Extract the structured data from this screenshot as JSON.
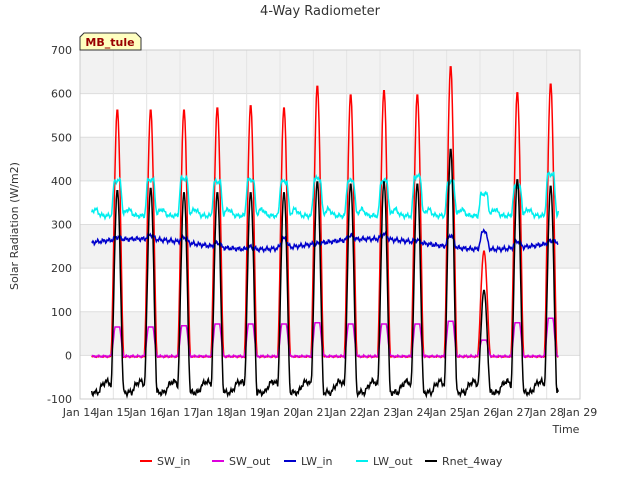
{
  "chart_data": {
    "type": "line",
    "title": "4-Way Radiometer",
    "xlabel": "Time",
    "ylabel": "Solar Radiation (W/m2)",
    "annotation": "MB_tule",
    "grid": true,
    "legend_position": "bottom",
    "xlim": [
      14,
      29
    ],
    "ylim": [
      -100,
      700
    ],
    "x_ticks": [
      14,
      15,
      16,
      17,
      18,
      19,
      20,
      21,
      22,
      23,
      24,
      25,
      26,
      27,
      28,
      29
    ],
    "x_tick_labels": [
      "Jan 14",
      "Jan 15",
      "Jan 16",
      "Jan 17",
      "Jan 18",
      "Jan 19",
      "Jan 20",
      "Jan 21",
      "Jan 22",
      "Jan 23",
      "Jan 24",
      "Jan 25",
      "Jan 26",
      "Jan 27",
      "Jan 28",
      "Jan 29"
    ],
    "y_ticks": [
      -100,
      0,
      100,
      200,
      300,
      400,
      500,
      600,
      700
    ],
    "daily_peaks": {
      "days": [
        15,
        16,
        17,
        18,
        19,
        20,
        21,
        22,
        23,
        24,
        25,
        26,
        27,
        28
      ],
      "SW_in": [
        565,
        565,
        565,
        570,
        575,
        570,
        620,
        600,
        610,
        600,
        665,
        240,
        605,
        625
      ],
      "SW_out": [
        65,
        65,
        68,
        72,
        72,
        72,
        75,
        72,
        72,
        72,
        78,
        35,
        75,
        85
      ],
      "LW_in_day": [
        265,
        272,
        275,
        270,
        265,
        290,
        255,
        270,
        275,
        265,
        300,
        330,
        280,
        265
      ],
      "LW_out_day": [
        400,
        402,
        405,
        398,
        402,
        398,
        405,
        400,
        400,
        410,
        398,
        370,
        385,
        415
      ],
      "Rnet_4way": [
        380,
        385,
        375,
        375,
        375,
        375,
        400,
        395,
        400,
        395,
        475,
        150,
        405,
        390
      ]
    },
    "series": [
      {
        "name": "SW_in",
        "color": "#ff0000"
      },
      {
        "name": "SW_out",
        "color": "#dd00dd"
      },
      {
        "name": "LW_in",
        "color": "#0000cc"
      },
      {
        "name": "LW_out",
        "color": "#00eeee"
      },
      {
        "name": "Rnet_4way",
        "color": "#000000"
      }
    ]
  }
}
